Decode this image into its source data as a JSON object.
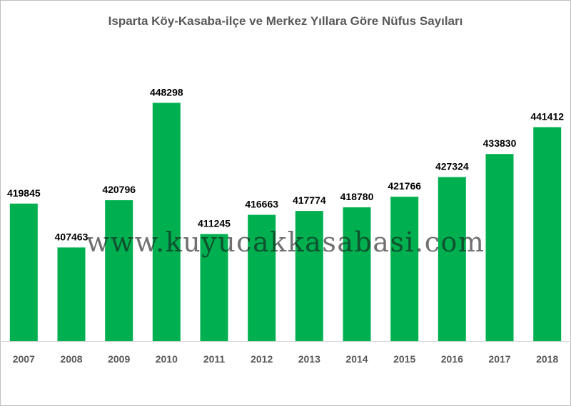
{
  "chart_data": {
    "type": "bar",
    "title": "Isparta Köy-Kasaba-ilçe ve Merkez Yıllara Göre Nüfus Sayıları",
    "categories": [
      "2007",
      "2008",
      "2009",
      "2010",
      "2011",
      "2012",
      "2013",
      "2014",
      "2015",
      "2016",
      "2017",
      "2018"
    ],
    "values": [
      419845,
      407463,
      420796,
      448298,
      411245,
      416663,
      417774,
      418780,
      421766,
      427324,
      433830,
      441412
    ],
    "data_labels": [
      "419845",
      "407463",
      "420796",
      "448298",
      "411245",
      "416663",
      "417774",
      "418780",
      "421766",
      "427324",
      "433830",
      "441412"
    ],
    "xlabel": "",
    "ylabel": "",
    "ylim": [
      381000,
      458000
    ],
    "grid": false,
    "legend": "none",
    "bar_color": "#00b050",
    "watermark": "www.kuyucakkasabasi.com"
  }
}
